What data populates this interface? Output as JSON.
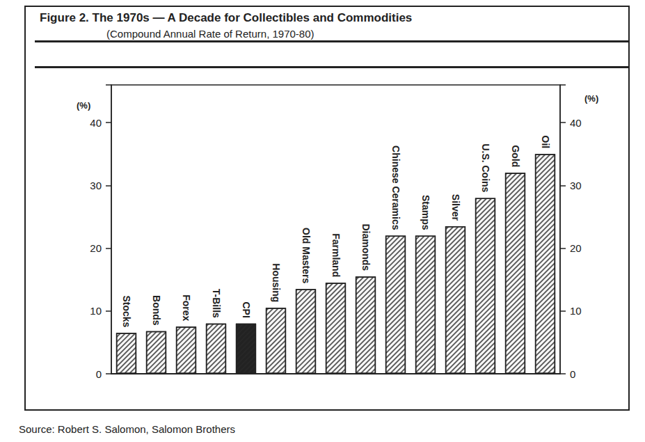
{
  "chart_data": {
    "type": "bar",
    "title": "Figure 2. The 1970s — A Decade for Collectibles and Commodities",
    "subtitle": "(Compound Annual Rate of Return, 1970-80)",
    "source": "Source: Robert S. Salomon, Salomon Brothers",
    "categories": [
      "Stocks",
      "Bonds",
      "Forex",
      "T-Bills",
      "CPI",
      "Housing",
      "Old Masters",
      "Farmland",
      "Diamonds",
      "Chinese Ceramics",
      "Stamps",
      "Silver",
      "U.S. Coins",
      "Gold",
      "Oil"
    ],
    "values": [
      6.5,
      6.8,
      7.5,
      8.0,
      8.0,
      10.5,
      13.5,
      14.5,
      15.5,
      22.0,
      22.0,
      23.5,
      28.0,
      32.0,
      35.0
    ],
    "colors": [
      "#ffffff",
      "#ffffff",
      "#ffffff",
      "#ffffff",
      "#222222",
      "#ffffff",
      "#ffffff",
      "#ffffff",
      "#ffffff",
      "#ffffff",
      "#ffffff",
      "#ffffff",
      "#ffffff",
      "#ffffff",
      "#ffffff"
    ],
    "ylabel": "(%)",
    "y2label": "(%)",
    "ylim": [
      0,
      46
    ],
    "yticks": [
      0,
      10,
      20,
      30,
      40
    ],
    "y2lim": [
      0,
      46
    ],
    "y2ticks": [
      0,
      10,
      20,
      30,
      40
    ],
    "grid": false,
    "tick_labels": "y"
  }
}
